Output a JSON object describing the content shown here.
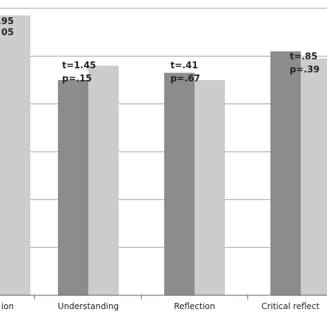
{
  "chart_data": {
    "type": "bar",
    "title": "",
    "xlabel": "",
    "ylabel": "",
    "ylim": [
      0,
      6
    ],
    "grid": true,
    "categories": [
      "ion",
      "Understanding",
      "Reflection",
      "Critical reflect"
    ],
    "series": [
      {
        "values": [
          null,
          4.5,
          4.65,
          5.1
        ]
      },
      {
        "values": [
          5.85,
          4.8,
          4.5,
          4.95
        ]
      }
    ],
    "annotations": [
      {
        "category": "ion",
        "t": ".95",
        "p": "05"
      },
      {
        "category": "Understanding",
        "t": "t=1.45",
        "p": "p=.15"
      },
      {
        "category": "Reflection",
        "t": "t=.41",
        "p": "p=.67"
      },
      {
        "category": "Critical reflect",
        "t": "t=.85",
        "p": "p=.39"
      }
    ],
    "colors": {
      "series1": "#8c8c8c",
      "series2": "#cccccc",
      "grid": "#9a9a9a",
      "axis": "#555555"
    }
  }
}
